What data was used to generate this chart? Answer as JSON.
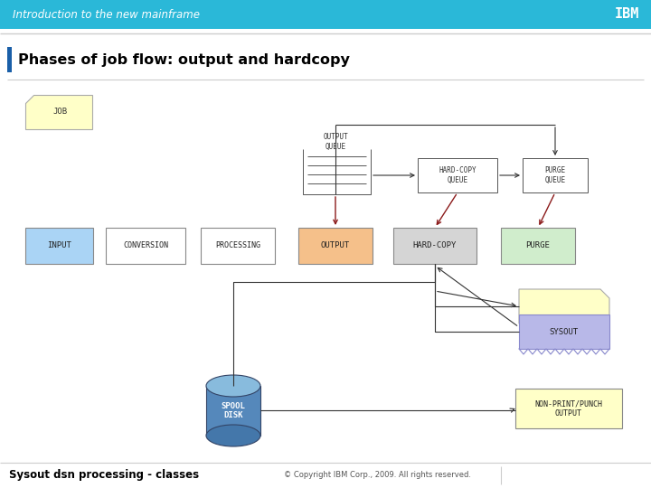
{
  "fig_w": 7.2,
  "fig_h": 5.4,
  "dpi": 100,
  "header_color": "#2ab8d8",
  "header_text": "Introduction to the new mainframe",
  "header_text_color": "#ffffff",
  "bg_color": "#f0f0f0",
  "main_bg": "#ffffff",
  "title_text": "Phases of job flow: output and hardcopy",
  "title_bar_color": "#1a5fa8",
  "subtitle": "Sysout dsn processing - classes",
  "copyright": "© Copyright IBM Corp., 2009. All rights reserved.",
  "line_color": "#555555",
  "dark_line": "#333333",
  "red_arrow": "#8b1a1a",
  "box_line": "#888888"
}
